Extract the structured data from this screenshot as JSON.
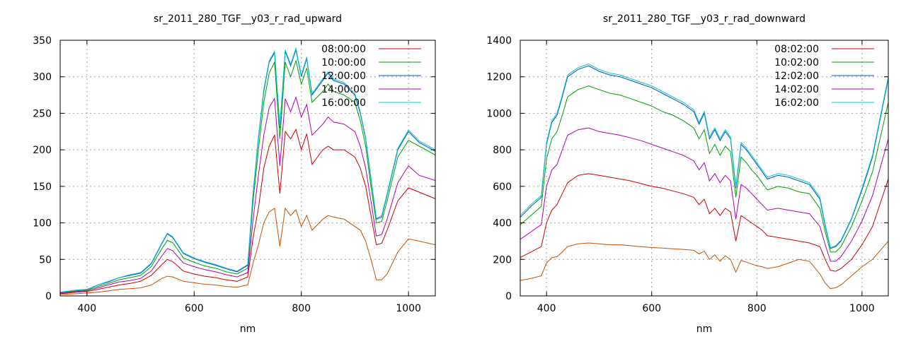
{
  "chart_data": [
    {
      "type": "line",
      "title": "sr_2011_280_TGF__y03_r_rad_upward",
      "xlabel": "nm",
      "ylabel": "",
      "xlim": [
        350,
        1050
      ],
      "ylim": [
        0,
        350
      ],
      "xticks": [
        400,
        600,
        800,
        1000
      ],
      "yticks": [
        0,
        50,
        100,
        150,
        200,
        250,
        300,
        350
      ],
      "grid": true,
      "legend_position": "top-right",
      "x": [
        350,
        380,
        400,
        420,
        440,
        460,
        480,
        500,
        520,
        540,
        550,
        560,
        580,
        600,
        620,
        640,
        660,
        680,
        700,
        710,
        720,
        730,
        740,
        750,
        760,
        770,
        780,
        790,
        800,
        810,
        820,
        840,
        850,
        860,
        880,
        900,
        910,
        920,
        930,
        940,
        950,
        960,
        980,
        1000,
        1020,
        1050
      ],
      "series": [
        {
          "name": "08:00:00",
          "color": "#cc0000",
          "values": [
            3,
            5,
            6,
            9,
            12,
            15,
            17,
            20,
            28,
            43,
            50,
            47,
            34,
            30,
            27,
            25,
            22,
            20,
            26,
            80,
            120,
            175,
            205,
            220,
            140,
            225,
            215,
            228,
            200,
            222,
            180,
            200,
            205,
            200,
            200,
            190,
            175,
            150,
            110,
            70,
            72,
            90,
            130,
            148,
            142,
            133
          ]
        },
        {
          "name": "10:00:00",
          "color": "#00a000",
          "values": [
            4,
            7,
            8,
            13,
            17,
            22,
            25,
            28,
            40,
            65,
            76,
            73,
            52,
            46,
            41,
            38,
            33,
            30,
            38,
            130,
            200,
            265,
            305,
            320,
            215,
            320,
            300,
            322,
            290,
            312,
            265,
            280,
            290,
            280,
            275,
            265,
            240,
            205,
            150,
            100,
            102,
            130,
            190,
            213,
            205,
            193
          ]
        },
        {
          "name": "12:00:00",
          "color": "#0050c8",
          "values": [
            5,
            8,
            9,
            15,
            19,
            25,
            28,
            31,
            44,
            72,
            85,
            80,
            58,
            51,
            46,
            42,
            37,
            33,
            42,
            140,
            215,
            280,
            320,
            333,
            230,
            335,
            315,
            337,
            300,
            325,
            275,
            295,
            305,
            295,
            290,
            275,
            250,
            215,
            160,
            105,
            108,
            138,
            200,
            225,
            210,
            198
          ]
        },
        {
          "name": "14:00:00",
          "color": "#b400b4",
          "values": [
            4,
            6,
            7,
            11,
            15,
            19,
            21,
            24,
            34,
            55,
            65,
            62,
            45,
            40,
            36,
            33,
            29,
            26,
            32,
            105,
            165,
            220,
            258,
            270,
            178,
            270,
            252,
            272,
            245,
            262,
            220,
            235,
            245,
            238,
            235,
            225,
            205,
            175,
            130,
            82,
            84,
            105,
            155,
            178,
            165,
            158
          ]
        },
        {
          "name": "16:00:00",
          "color": "#00c8c8",
          "values": [
            5,
            8,
            9,
            15,
            20,
            25,
            29,
            32,
            45,
            73,
            86,
            81,
            59,
            52,
            47,
            43,
            38,
            34,
            43,
            142,
            218,
            283,
            322,
            335,
            232,
            337,
            317,
            339,
            302,
            327,
            277,
            297,
            307,
            297,
            292,
            277,
            252,
            217,
            162,
            106,
            110,
            140,
            202,
            227,
            212,
            200
          ]
        },
        {
          "name": "",
          "color": "#c85000",
          "values": [
            2,
            3,
            4,
            5,
            7,
            9,
            10,
            11,
            15,
            24,
            27,
            26,
            20,
            18,
            16,
            15,
            13,
            12,
            15,
            45,
            70,
            100,
            115,
            120,
            68,
            120,
            110,
            118,
            95,
            110,
            90,
            105,
            110,
            108,
            105,
            95,
            90,
            75,
            50,
            22,
            22,
            30,
            60,
            78,
            75,
            70
          ]
        }
      ]
    },
    {
      "type": "line",
      "title": "sr_2011_280_TGF__y03_r_rad_downward",
      "xlabel": "nm",
      "ylabel": "",
      "xlim": [
        350,
        1050
      ],
      "ylim": [
        0,
        1400
      ],
      "xticks": [
        400,
        600,
        800,
        1000
      ],
      "yticks": [
        0,
        200,
        400,
        600,
        800,
        1000,
        1200,
        1400
      ],
      "grid": true,
      "legend_position": "top-right",
      "x": [
        350,
        370,
        390,
        400,
        410,
        420,
        430,
        440,
        460,
        480,
        500,
        520,
        540,
        560,
        580,
        600,
        620,
        640,
        660,
        680,
        690,
        700,
        710,
        720,
        730,
        740,
        750,
        760,
        770,
        780,
        790,
        800,
        810,
        820,
        840,
        860,
        880,
        900,
        920,
        930,
        940,
        950,
        960,
        980,
        1000,
        1020,
        1050
      ],
      "series": [
        {
          "name": "08:02:00",
          "color": "#cc0000",
          "values": [
            210,
            240,
            270,
            400,
            470,
            500,
            560,
            620,
            660,
            670,
            660,
            650,
            640,
            630,
            615,
            600,
            590,
            575,
            560,
            540,
            500,
            530,
            450,
            480,
            440,
            480,
            460,
            300,
            440,
            420,
            400,
            380,
            360,
            330,
            320,
            310,
            300,
            290,
            270,
            200,
            140,
            135,
            150,
            200,
            280,
            380,
            640
          ]
        },
        {
          "name": "10:02:00",
          "color": "#00a000",
          "values": [
            390,
            440,
            490,
            750,
            860,
            900,
            990,
            1090,
            1130,
            1150,
            1130,
            1110,
            1100,
            1080,
            1060,
            1040,
            1010,
            990,
            960,
            920,
            860,
            910,
            780,
            830,
            770,
            820,
            790,
            540,
            760,
            730,
            690,
            660,
            620,
            580,
            600,
            590,
            570,
            560,
            480,
            350,
            240,
            240,
            270,
            380,
            520,
            680,
            1060
          ]
        },
        {
          "name": "12:02:00",
          "color": "#0050c8",
          "values": [
            430,
            490,
            540,
            830,
            950,
            990,
            1090,
            1200,
            1240,
            1260,
            1230,
            1210,
            1200,
            1180,
            1160,
            1140,
            1110,
            1080,
            1050,
            1010,
            940,
            1000,
            860,
            910,
            850,
            900,
            860,
            590,
            830,
            800,
            760,
            720,
            680,
            640,
            660,
            650,
            630,
            610,
            530,
            380,
            260,
            270,
            300,
            420,
            580,
            760,
            1190
          ]
        },
        {
          "name": "14:02:00",
          "color": "#b400b4",
          "values": [
            310,
            350,
            390,
            600,
            690,
            720,
            800,
            880,
            910,
            920,
            900,
            890,
            880,
            865,
            850,
            830,
            810,
            790,
            770,
            740,
            690,
            730,
            630,
            670,
            620,
            660,
            630,
            420,
            610,
            590,
            560,
            530,
            500,
            470,
            480,
            470,
            460,
            450,
            380,
            280,
            190,
            190,
            215,
            300,
            410,
            550,
            860
          ]
        },
        {
          "name": "16:02:00",
          "color": "#00c8c8",
          "values": [
            440,
            500,
            550,
            840,
            960,
            1000,
            1100,
            1210,
            1250,
            1270,
            1240,
            1220,
            1210,
            1190,
            1170,
            1150,
            1120,
            1090,
            1060,
            1020,
            950,
            1010,
            870,
            920,
            860,
            910,
            870,
            600,
            840,
            810,
            770,
            730,
            690,
            650,
            670,
            660,
            640,
            620,
            540,
            390,
            265,
            275,
            305,
            425,
            590,
            770,
            1200
          ]
        },
        {
          "name": "",
          "color": "#c85000",
          "values": [
            85,
            95,
            110,
            180,
            210,
            215,
            240,
            270,
            285,
            290,
            285,
            280,
            280,
            275,
            270,
            265,
            262,
            258,
            255,
            250,
            230,
            245,
            200,
            225,
            190,
            220,
            200,
            130,
            195,
            185,
            175,
            165,
            160,
            150,
            160,
            180,
            200,
            190,
            120,
            70,
            40,
            45,
            60,
            110,
            160,
            200,
            300
          ]
        }
      ]
    }
  ]
}
